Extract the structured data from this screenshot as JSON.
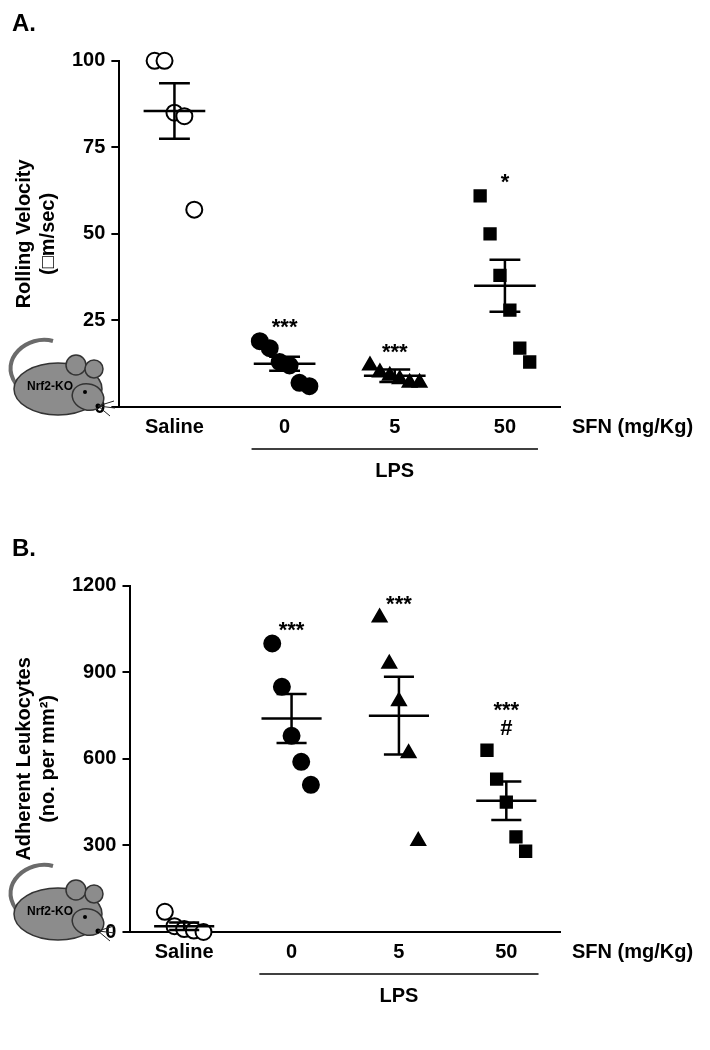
{
  "chart_data": [
    {
      "type": "scatter",
      "title": "A.",
      "ylabel": "Rolling Velocity (□m/sec)",
      "xlabel": "SFN (mg/Kg)",
      "icon_label": "Nrf2-KO",
      "categories": [
        "Saline",
        "0",
        "5",
        "50"
      ],
      "group_label": {
        "text": "LPS",
        "categories": [
          "0",
          "5",
          "50"
        ]
      },
      "ylim": [
        0,
        100
      ],
      "yticks": [
        0,
        25,
        50,
        75,
        100
      ],
      "grid": false,
      "groups": [
        {
          "category": "Saline",
          "marker": "open_circle",
          "color": "#000000",
          "values": [
            100,
            100,
            85,
            84,
            57
          ],
          "mean": 85.5,
          "sem": 8,
          "annotation": []
        },
        {
          "category": "0",
          "marker": "circle",
          "color": "#000000",
          "values": [
            19,
            17,
            13,
            12,
            7,
            6
          ],
          "mean": 12.5,
          "sem": 2,
          "annotation": [
            "***"
          ]
        },
        {
          "category": "5",
          "marker": "triangle",
          "color": "#000000",
          "values": [
            12,
            10,
            9,
            8,
            7,
            7
          ],
          "mean": 9,
          "sem": 1.8,
          "annotation": [
            "***"
          ]
        },
        {
          "category": "50",
          "marker": "square",
          "color": "#000000",
          "values": [
            61,
            50,
            38,
            28,
            17,
            13
          ],
          "mean": 35,
          "sem": 7.5,
          "annotation": [
            "*"
          ]
        }
      ]
    },
    {
      "type": "scatter",
      "title": "B.",
      "ylabel": "Adherent Leukocytes (no. per mm²)",
      "xlabel": "SFN (mg/Kg)",
      "icon_label": "Nrf2-KO",
      "categories": [
        "Saline",
        "0",
        "5",
        "50"
      ],
      "group_label": {
        "text": "LPS",
        "categories": [
          "0",
          "5",
          "50"
        ]
      },
      "ylim": [
        0,
        1200
      ],
      "yticks": [
        0,
        300,
        600,
        900,
        1200
      ],
      "grid": false,
      "groups": [
        {
          "category": "Saline",
          "marker": "open_circle",
          "color": "#000000",
          "values": [
            70,
            20,
            10,
            5,
            0
          ],
          "mean": 20,
          "sem": 13,
          "annotation": []
        },
        {
          "category": "0",
          "marker": "circle",
          "color": "#000000",
          "values": [
            1000,
            850,
            680,
            590,
            510
          ],
          "mean": 740,
          "sem": 85,
          "annotation": [
            "***"
          ]
        },
        {
          "category": "5",
          "marker": "triangle",
          "color": "#000000",
          "values": [
            1090,
            930,
            800,
            620,
            315
          ],
          "mean": 750,
          "sem": 135,
          "annotation": [
            "***"
          ]
        },
        {
          "category": "50",
          "marker": "square",
          "color": "#000000",
          "values": [
            630,
            530,
            450,
            330,
            280
          ],
          "mean": 455,
          "sem": 67,
          "annotation": [
            "***",
            "#"
          ]
        }
      ]
    }
  ]
}
